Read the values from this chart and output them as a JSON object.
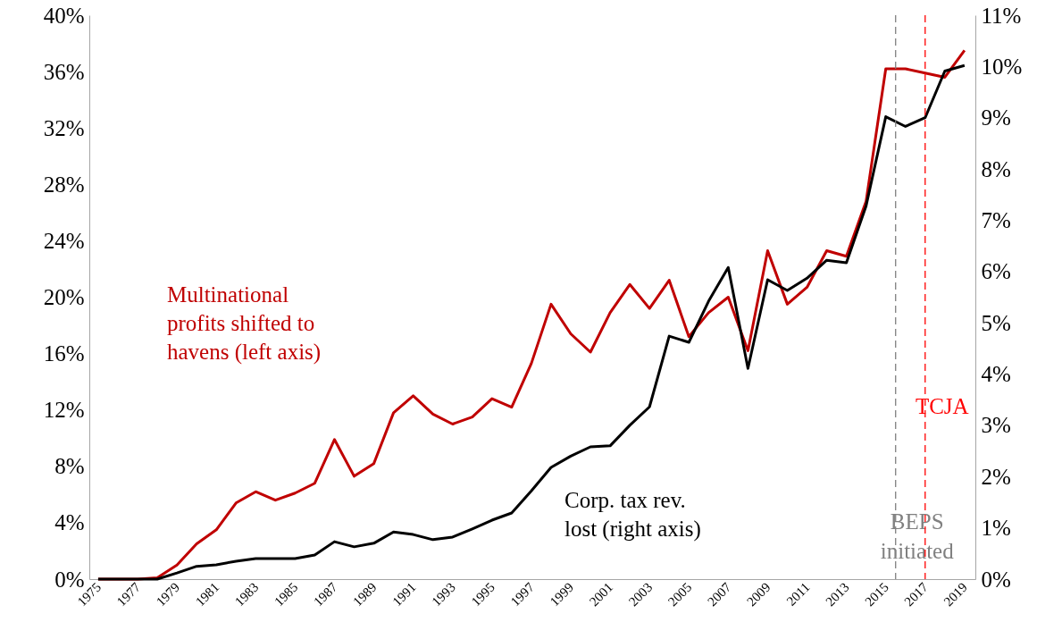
{
  "chart_data": {
    "type": "line",
    "x": [
      1975,
      1976,
      1977,
      1978,
      1979,
      1980,
      1981,
      1982,
      1983,
      1984,
      1985,
      1986,
      1987,
      1988,
      1989,
      1990,
      1991,
      1992,
      1993,
      1994,
      1995,
      1996,
      1997,
      1998,
      1999,
      2000,
      2001,
      2002,
      2003,
      2004,
      2005,
      2006,
      2007,
      2008,
      2009,
      2010,
      2011,
      2012,
      2013,
      2014,
      2015,
      2016,
      2017,
      2018,
      2019
    ],
    "series": [
      {
        "name": "Multinational profits shifted to havens (left axis)",
        "color": "#c00000",
        "values": [
          0,
          0,
          0,
          0.1,
          1.0,
          2.5,
          3.5,
          5.4,
          6.2,
          5.6,
          6.1,
          6.8,
          9.9,
          7.3,
          8.2,
          11.8,
          13.0,
          11.7,
          11.0,
          11.5,
          12.8,
          12.2,
          15.3,
          19.5,
          17.4,
          16.1,
          18.9,
          20.9,
          19.2,
          21.2,
          17.2,
          18.9,
          20.0,
          16.2,
          23.3,
          19.5,
          20.7,
          23.3,
          22.9,
          26.8,
          36.2,
          36.2,
          35.9,
          35.6,
          37.5
        ]
      },
      {
        "name": "Corp. tax rev. lost (right axis)",
        "color": "#000000",
        "axis": "y2",
        "values": [
          0,
          0,
          0,
          0,
          0.12,
          0.25,
          0.28,
          0.35,
          0.4,
          0.4,
          0.4,
          0.47,
          0.73,
          0.63,
          0.7,
          0.92,
          0.87,
          0.77,
          0.82,
          0.98,
          1.15,
          1.29,
          1.72,
          2.18,
          2.4,
          2.58,
          2.6,
          3.0,
          3.36,
          4.74,
          4.62,
          5.42,
          6.08,
          4.11,
          5.84,
          5.63,
          5.87,
          6.22,
          6.17,
          7.28,
          9.02,
          8.83,
          9.0,
          9.91,
          10.02
        ]
      }
    ],
    "xlim": [
      1974.55,
      2019.55
    ],
    "xticks": [
      1975,
      1977,
      1979,
      1981,
      1983,
      1985,
      1987,
      1989,
      1991,
      1993,
      1995,
      1997,
      1999,
      2001,
      2003,
      2005,
      2007,
      2009,
      2011,
      2013,
      2015,
      2017,
      2019
    ],
    "ylim": [
      0,
      40
    ],
    "yticks": [
      {
        "value": 0,
        "label": "0%"
      },
      {
        "value": 4,
        "label": "4%"
      },
      {
        "value": 8,
        "label": "8%"
      },
      {
        "value": 12,
        "label": "12%"
      },
      {
        "value": 16,
        "label": "16%"
      },
      {
        "value": 20,
        "label": "20%"
      },
      {
        "value": 24,
        "label": "24%"
      },
      {
        "value": 28,
        "label": "28%"
      },
      {
        "value": 32,
        "label": "32%"
      },
      {
        "value": 36,
        "label": "36%"
      },
      {
        "value": 40,
        "label": "40%"
      }
    ],
    "y2lim": [
      0,
      11
    ],
    "y2ticks": [
      {
        "value": 0,
        "label": "0%"
      },
      {
        "value": 1,
        "label": "1%"
      },
      {
        "value": 2,
        "label": "2%"
      },
      {
        "value": 3,
        "label": "3%"
      },
      {
        "value": 4,
        "label": "4%"
      },
      {
        "value": 5,
        "label": "5%"
      },
      {
        "value": 6,
        "label": "6%"
      },
      {
        "value": 7,
        "label": "7%"
      },
      {
        "value": 8,
        "label": "8%"
      },
      {
        "value": 9,
        "label": "9%"
      },
      {
        "value": 10,
        "label": "10%"
      },
      {
        "value": 11,
        "label": "11%"
      }
    ],
    "ref_lines": [
      {
        "axis": "x",
        "value": 2015.5,
        "label": "BEPS initiated",
        "color": "#808080",
        "line_style": "dashed"
      },
      {
        "axis": "x",
        "value": 2017,
        "label": "TCJA",
        "color": "#ff0000",
        "line_style": "dashed"
      }
    ],
    "grid": false,
    "legend": false,
    "marker": "none",
    "line_style": "solid"
  }
}
